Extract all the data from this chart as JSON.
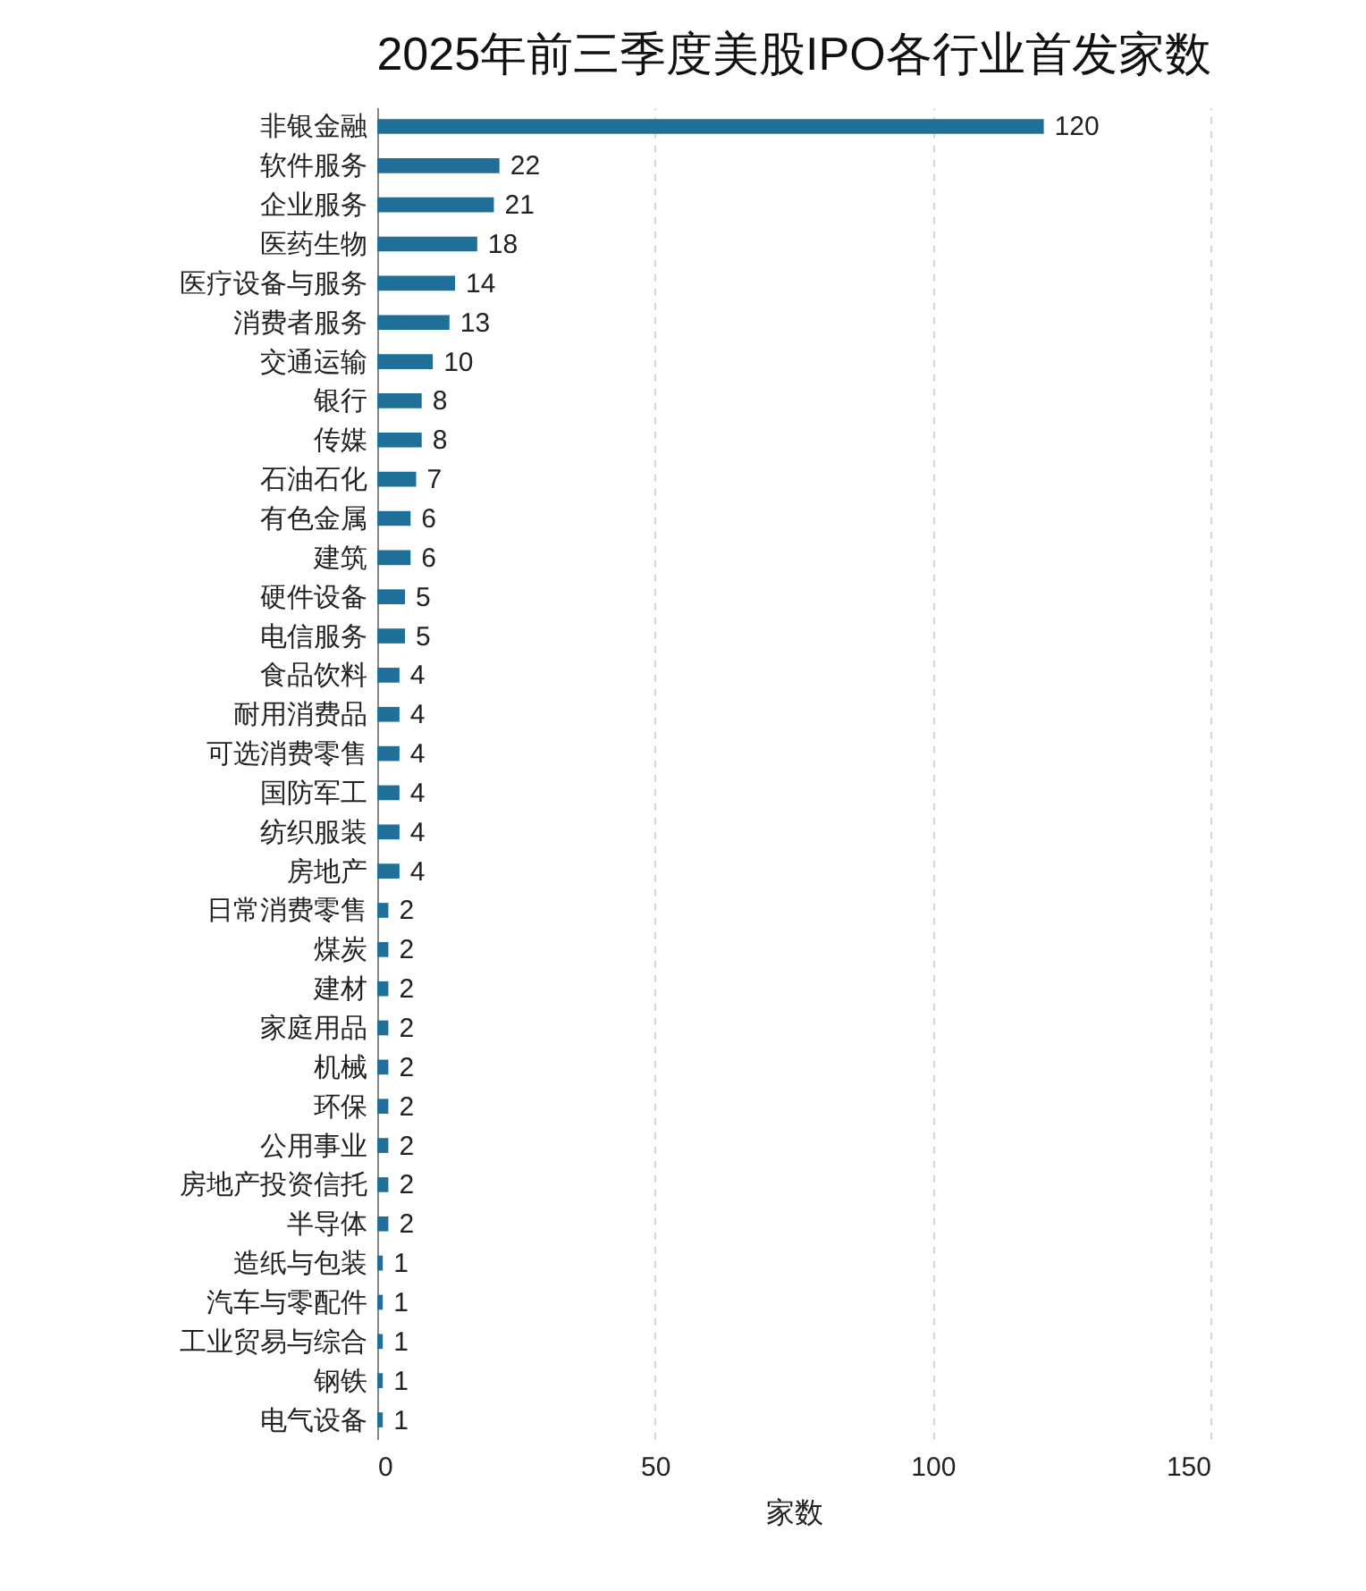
{
  "chart_data": {
    "type": "bar",
    "orientation": "horizontal",
    "title": "2025年前三季度美股IPO各行业首发家数",
    "xlabel": "家数",
    "categories": [
      "非银金融",
      "软件服务",
      "企业服务",
      "医药生物",
      "医疗设备与服务",
      "消费者服务",
      "交通运输",
      "银行",
      "传媒",
      "石油石化",
      "有色金属",
      "建筑",
      "硬件设备",
      "电信服务",
      "食品饮料",
      "耐用消费品",
      "可选消费零售",
      "国防军工",
      "纺织服装",
      "房地产",
      "日常消费零售",
      "煤炭",
      "建材",
      "家庭用品",
      "机械",
      "环保",
      "公用事业",
      "房地产投资信托",
      "半导体",
      "造纸与包装",
      "汽车与零配件",
      "工业贸易与综合",
      "钢铁",
      "电气设备"
    ],
    "values": [
      120,
      22,
      21,
      18,
      14,
      13,
      10,
      8,
      8,
      7,
      6,
      6,
      5,
      5,
      4,
      4,
      4,
      4,
      4,
      4,
      2,
      2,
      2,
      2,
      2,
      2,
      2,
      2,
      2,
      1,
      1,
      1,
      1,
      1
    ],
    "color": "#1f7099",
    "xlim": [
      0,
      150
    ],
    "xticks": [
      0,
      50,
      100,
      150
    ],
    "grid": "x",
    "data_labels": true
  }
}
